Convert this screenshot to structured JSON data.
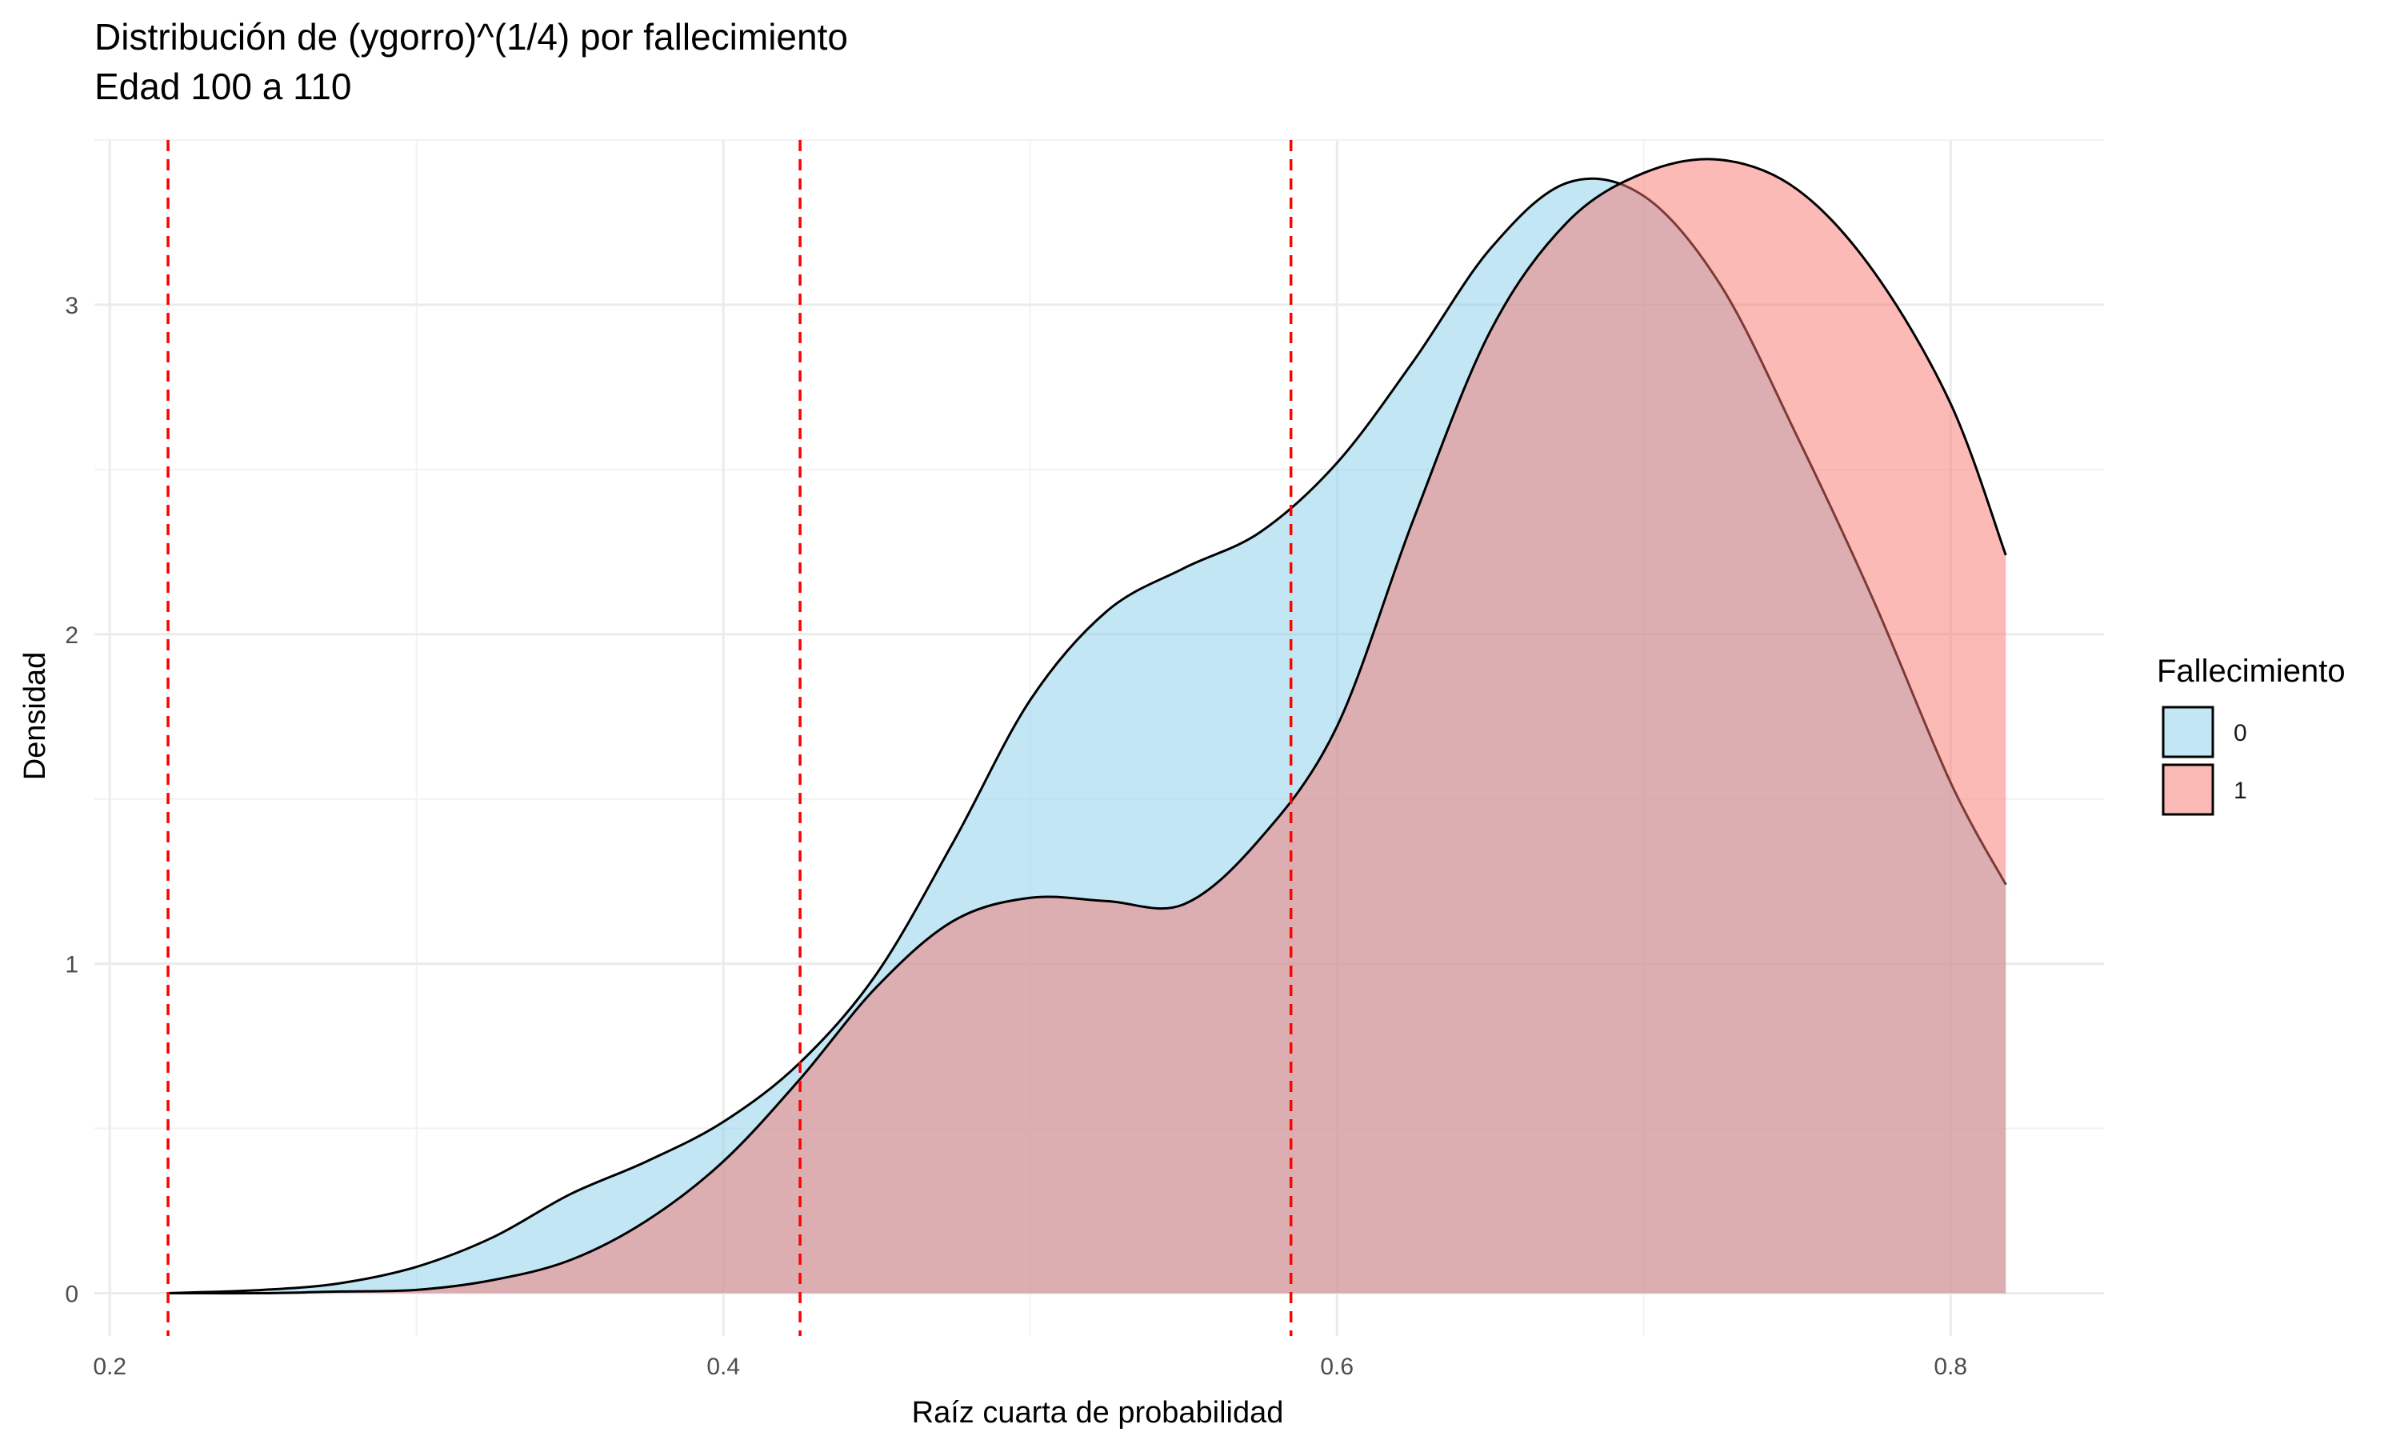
{
  "chart_data": {
    "type": "area",
    "subtype": "density",
    "title": [
      "Distribución de (ygorro)^(1/4) por fallecimiento",
      "Edad 100 a 110"
    ],
    "xlabel": "Raíz cuarta de probabilidad",
    "ylabel": "Densidad",
    "xlim": [
      0.195,
      0.85
    ],
    "ylim": [
      -0.13,
      3.5
    ],
    "x_ticks": [
      0.2,
      0.4,
      0.6,
      0.8
    ],
    "x_tick_labels": [
      "0.2",
      "0.4",
      "0.6",
      "0.8"
    ],
    "y_ticks": [
      0,
      1,
      2,
      3
    ],
    "y_tick_labels": [
      "0",
      "1",
      "2",
      "3"
    ],
    "grid": true,
    "legend": {
      "title": "Fallecimiento",
      "position": "right"
    },
    "vlines": {
      "values": [
        0.219,
        0.425,
        0.585
      ],
      "color": "#ff0000",
      "style": "dashed"
    },
    "series": [
      {
        "name": "0",
        "fill": "#87ceeb",
        "x": [
          0.219,
          0.25,
          0.275,
          0.3,
          0.325,
          0.35,
          0.375,
          0.4,
          0.425,
          0.45,
          0.475,
          0.5,
          0.525,
          0.55,
          0.575,
          0.6,
          0.625,
          0.65,
          0.675,
          0.7,
          0.725,
          0.75,
          0.775,
          0.8,
          0.818
        ],
        "values": [
          0.0,
          0.01,
          0.03,
          0.08,
          0.17,
          0.3,
          0.4,
          0.52,
          0.7,
          0.97,
          1.37,
          1.8,
          2.07,
          2.2,
          2.31,
          2.52,
          2.83,
          3.17,
          3.37,
          3.33,
          3.06,
          2.6,
          2.1,
          1.55,
          1.24
        ]
      },
      {
        "name": "1",
        "fill": "#f8766d",
        "x": [
          0.219,
          0.25,
          0.275,
          0.3,
          0.325,
          0.35,
          0.375,
          0.4,
          0.425,
          0.45,
          0.475,
          0.5,
          0.525,
          0.55,
          0.575,
          0.6,
          0.625,
          0.65,
          0.675,
          0.7,
          0.725,
          0.75,
          0.775,
          0.8,
          0.818
        ],
        "values": [
          0.0,
          0.0,
          0.005,
          0.01,
          0.04,
          0.1,
          0.22,
          0.4,
          0.65,
          0.93,
          1.13,
          1.2,
          1.19,
          1.18,
          1.38,
          1.72,
          2.35,
          2.92,
          3.25,
          3.4,
          3.44,
          3.35,
          3.1,
          2.7,
          2.24
        ]
      }
    ]
  }
}
